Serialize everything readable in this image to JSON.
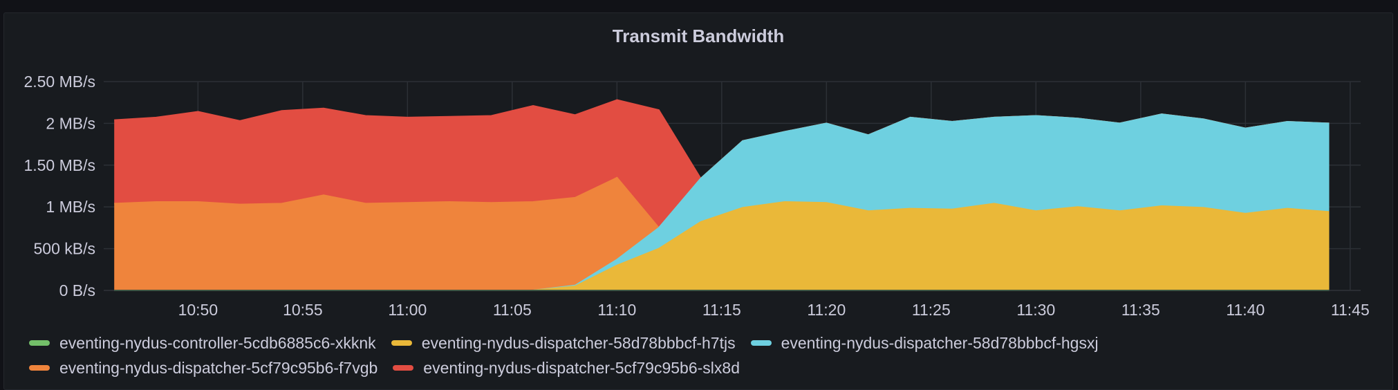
{
  "panel": {
    "title": "Transmit Bandwidth"
  },
  "chart_data": {
    "type": "area",
    "stacked": true,
    "title": "Transmit Bandwidth",
    "xlabel": "",
    "ylabel": "",
    "unit": "bytes/s",
    "ylim": [
      0,
      2500000
    ],
    "yticks": [
      {
        "value": 0,
        "label": "0 B/s"
      },
      {
        "value": 500000,
        "label": "500 kB/s"
      },
      {
        "value": 1000000,
        "label": "1 MB/s"
      },
      {
        "value": 1500000,
        "label": "1.50 MB/s"
      },
      {
        "value": 2000000,
        "label": "2 MB/s"
      },
      {
        "value": 2500000,
        "label": "2.50 MB/s"
      }
    ],
    "xlim": [
      "10:45:30",
      "11:45:30"
    ],
    "xticks": [
      "10:50",
      "10:55",
      "11:00",
      "11:05",
      "11:10",
      "11:15",
      "11:20",
      "11:25",
      "11:30",
      "11:35",
      "11:40",
      "11:45"
    ],
    "x": [
      "10:46",
      "10:48",
      "10:50",
      "10:52",
      "10:54",
      "10:56",
      "10:58",
      "11:00",
      "11:02",
      "11:04",
      "11:06",
      "11:08",
      "11:10",
      "11:12",
      "11:14",
      "11:16",
      "11:18",
      "11:20",
      "11:22",
      "11:24",
      "11:26",
      "11:28",
      "11:30",
      "11:32",
      "11:34",
      "11:36",
      "11:38",
      "11:40",
      "11:42",
      "11:44"
    ],
    "grid": true,
    "legend_position": "bottom",
    "series": [
      {
        "name": "eventing-nydus-controller-5cdb6885c6-xkknk",
        "color": "#73bf69",
        "values": [
          0,
          0,
          0,
          0,
          0,
          0,
          0,
          0,
          0,
          0,
          0,
          0,
          0,
          0,
          0,
          0,
          0,
          0,
          0,
          0,
          0,
          0,
          0,
          0,
          0,
          0,
          0,
          0,
          0,
          0
        ]
      },
      {
        "name": "eventing-nydus-dispatcher-58d78bbbcf-h7tjs",
        "color": "#eab839",
        "values": [
          0,
          0,
          0,
          0,
          0,
          0,
          0,
          0,
          0,
          0,
          0,
          50000,
          300000,
          500000,
          820000,
          990000,
          1060000,
          1050000,
          950000,
          980000,
          970000,
          1040000,
          950000,
          1000000,
          950000,
          1010000,
          990000,
          920000,
          980000,
          940000
        ]
      },
      {
        "name": "eventing-nydus-dispatcher-58d78bbbcf-hgsxj",
        "color": "#6ed0e0",
        "values": [
          0,
          0,
          0,
          0,
          0,
          0,
          0,
          0,
          0,
          0,
          0,
          10000,
          70000,
          250000,
          520000,
          800000,
          840000,
          950000,
          910000,
          1090000,
          1050000,
          1030000,
          1140000,
          1060000,
          1050000,
          1100000,
          1060000,
          1020000,
          1040000,
          1060000
        ]
      },
      {
        "name": "eventing-nydus-dispatcher-5cf79c95b6-f7vgb",
        "color": "#ef843c",
        "values": [
          1040000,
          1060000,
          1060000,
          1030000,
          1040000,
          1140000,
          1040000,
          1050000,
          1060000,
          1050000,
          1060000,
          1050000,
          980000,
          0,
          0,
          0,
          0,
          0,
          0,
          0,
          0,
          0,
          0,
          0,
          0,
          0,
          0,
          0,
          0,
          0
        ]
      },
      {
        "name": "eventing-nydus-dispatcher-5cf79c95b6-slx8d",
        "color": "#e24d42",
        "values": [
          1000000,
          1010000,
          1080000,
          1000000,
          1110000,
          1040000,
          1050000,
          1020000,
          1020000,
          1040000,
          1150000,
          990000,
          930000,
          1410000,
          0,
          0,
          0,
          0,
          0,
          0,
          0,
          0,
          0,
          0,
          0,
          0,
          0,
          0,
          0,
          0
        ]
      }
    ]
  },
  "legend": {
    "rows": [
      [
        0,
        1,
        2
      ],
      [
        3,
        4
      ]
    ]
  }
}
